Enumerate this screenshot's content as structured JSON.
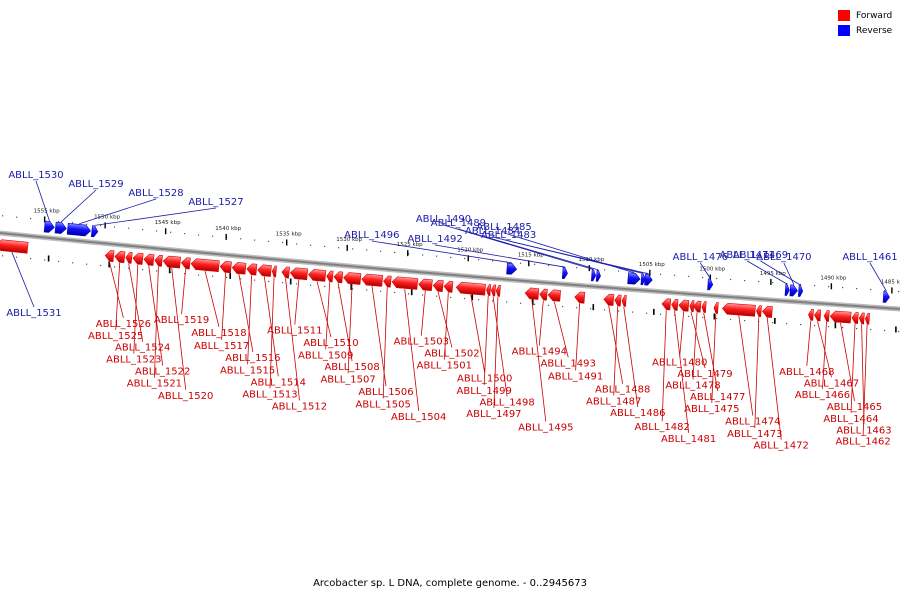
{
  "legend": {
    "forward": {
      "label": "Forward",
      "color": "#ff0000"
    },
    "reverse": {
      "label": "Reverse",
      "color": "#0000ff"
    }
  },
  "caption": "Arcobacter sp. L DNA, complete genome. - 0..2945673",
  "colors": {
    "forward_label": "#cc0000",
    "reverse_label": "#1a1aaa",
    "forward_fill": "#ff2020",
    "forward_dark": "#b00000",
    "reverse_fill": "#1010ff",
    "reverse_dark": "#0000a0",
    "backbone": "#808080",
    "tick": "#000000"
  },
  "scale": [
    {
      "label": "1555 kbp",
      "kbp": 1555
    },
    {
      "label": "1550 kbp",
      "kbp": 1550
    },
    {
      "label": "1545 kbp",
      "kbp": 1545
    },
    {
      "label": "1540 kbp",
      "kbp": 1540
    },
    {
      "label": "1535 kbp",
      "kbp": 1535
    },
    {
      "label": "1530 kbp",
      "kbp": 1530
    },
    {
      "label": "1525 kbp",
      "kbp": 1525
    },
    {
      "label": "1520 kbp",
      "kbp": 1520
    },
    {
      "label": "1515 kbp",
      "kbp": 1515
    },
    {
      "label": "1510 kbp",
      "kbp": 1510
    },
    {
      "label": "1505 kbp",
      "kbp": 1505
    },
    {
      "label": "1500 kbp",
      "kbp": 1500
    },
    {
      "label": "1495 kbp",
      "kbp": 1495
    },
    {
      "label": "1490 kbp",
      "kbp": 1490
    },
    {
      "label": "1485 kbp",
      "kbp": 1485
    }
  ],
  "genes": [
    {
      "name": "ABLL_1531",
      "strand": "forward",
      "start_kbp": 1559.0,
      "end_kbp": 1556.4
    },
    {
      "name": "ABLL_1530",
      "strand": "reverse",
      "start_kbp": 1555.0,
      "end_kbp": 1554.2
    },
    {
      "name": "ABLL_1529",
      "strand": "reverse",
      "start_kbp": 1554.1,
      "end_kbp": 1553.2
    },
    {
      "name": "ABLL_1528",
      "strand": "reverse",
      "start_kbp": 1553.1,
      "end_kbp": 1551.2
    },
    {
      "name": "ABLL_1527",
      "strand": "reverse",
      "start_kbp": 1551.1,
      "end_kbp": 1550.6
    },
    {
      "name": "ABLL_1526",
      "strand": "forward",
      "start_kbp": 1550.0,
      "end_kbp": 1549.3
    },
    {
      "name": "ABLL_1525",
      "strand": "forward",
      "start_kbp": 1549.2,
      "end_kbp": 1548.4
    },
    {
      "name": "ABLL_1524",
      "strand": "forward",
      "start_kbp": 1548.3,
      "end_kbp": 1547.8
    },
    {
      "name": "ABLL_1523",
      "strand": "forward",
      "start_kbp": 1547.7,
      "end_kbp": 1546.9
    },
    {
      "name": "ABLL_1522",
      "strand": "forward",
      "start_kbp": 1546.8,
      "end_kbp": 1546.0
    },
    {
      "name": "ABLL_1521",
      "strand": "forward",
      "start_kbp": 1545.9,
      "end_kbp": 1545.3
    },
    {
      "name": "ABLL_1520",
      "strand": "forward",
      "start_kbp": 1545.2,
      "end_kbp": 1543.8
    },
    {
      "name": "ABLL_1519",
      "strand": "forward",
      "start_kbp": 1543.7,
      "end_kbp": 1543.0
    },
    {
      "name": "ABLL_1518",
      "strand": "forward",
      "start_kbp": 1542.9,
      "end_kbp": 1540.6
    },
    {
      "name": "ABLL_1517",
      "strand": "forward",
      "start_kbp": 1540.5,
      "end_kbp": 1539.6
    },
    {
      "name": "ABLL_1516",
      "strand": "forward",
      "start_kbp": 1539.5,
      "end_kbp": 1538.4
    },
    {
      "name": "ABLL_1515",
      "strand": "forward",
      "start_kbp": 1538.3,
      "end_kbp": 1537.5
    },
    {
      "name": "ABLL_1514",
      "strand": "forward",
      "start_kbp": 1537.4,
      "end_kbp": 1536.3
    },
    {
      "name": "ABLL_1513",
      "strand": "forward",
      "start_kbp": 1536.2,
      "end_kbp": 1535.9
    },
    {
      "name": "ABLL_1512",
      "strand": "forward",
      "start_kbp": 1535.4,
      "end_kbp": 1534.8
    },
    {
      "name": "ABLL_1511",
      "strand": "forward",
      "start_kbp": 1534.7,
      "end_kbp": 1533.3
    },
    {
      "name": "ABLL_1510",
      "strand": "forward",
      "start_kbp": 1533.2,
      "end_kbp": 1531.8
    },
    {
      "name": "ABLL_1509",
      "strand": "forward",
      "start_kbp": 1531.7,
      "end_kbp": 1531.2
    },
    {
      "name": "ABLL_1508",
      "strand": "forward",
      "start_kbp": 1531.1,
      "end_kbp": 1530.4
    },
    {
      "name": "ABLL_1507",
      "strand": "forward",
      "start_kbp": 1530.3,
      "end_kbp": 1528.9
    },
    {
      "name": "ABLL_1506",
      "strand": "forward",
      "start_kbp": 1528.8,
      "end_kbp": 1527.1
    },
    {
      "name": "ABLL_1505",
      "strand": "forward",
      "start_kbp": 1527.0,
      "end_kbp": 1526.4
    },
    {
      "name": "ABLL_1504",
      "strand": "forward",
      "start_kbp": 1526.3,
      "end_kbp": 1524.2
    },
    {
      "name": "ABLL_1503",
      "strand": "forward",
      "start_kbp": 1524.1,
      "end_kbp": 1523.0
    },
    {
      "name": "ABLL_1502",
      "strand": "forward",
      "start_kbp": 1522.9,
      "end_kbp": 1522.1
    },
    {
      "name": "ABLL_1501",
      "strand": "forward",
      "start_kbp": 1522.0,
      "end_kbp": 1521.3
    },
    {
      "name": "ABLL_1500",
      "strand": "forward",
      "start_kbp": 1521.0,
      "end_kbp": 1518.6
    },
    {
      "name": "ABLL_1499",
      "strand": "forward",
      "start_kbp": 1518.5,
      "end_kbp": 1518.2
    },
    {
      "name": "ABLL_1498",
      "strand": "forward",
      "start_kbp": 1518.1,
      "end_kbp": 1517.8
    },
    {
      "name": "ABLL_1497",
      "strand": "forward",
      "start_kbp": 1517.7,
      "end_kbp": 1517.4
    },
    {
      "name": "ABLL_1496",
      "strand": "reverse",
      "start_kbp": 1516.8,
      "end_kbp": 1516.0
    },
    {
      "name": "ABLL_1495",
      "strand": "forward",
      "start_kbp": 1515.3,
      "end_kbp": 1514.2
    },
    {
      "name": "ABLL_1494",
      "strand": "forward",
      "start_kbp": 1514.1,
      "end_kbp": 1513.5
    },
    {
      "name": "ABLL_1493",
      "strand": "forward",
      "start_kbp": 1513.4,
      "end_kbp": 1512.4
    },
    {
      "name": "ABLL_1492",
      "strand": "reverse",
      "start_kbp": 1512.2,
      "end_kbp": 1511.8
    },
    {
      "name": "ABLL_1491",
      "strand": "forward",
      "start_kbp": 1511.2,
      "end_kbp": 1510.4
    },
    {
      "name": "ABLL_1490",
      "strand": "reverse",
      "start_kbp": 1509.8,
      "end_kbp": 1509.5
    },
    {
      "name": "ABLL_1489",
      "strand": "reverse",
      "start_kbp": 1509.4,
      "end_kbp": 1509.1
    },
    {
      "name": "ABLL_1488",
      "strand": "forward",
      "start_kbp": 1508.8,
      "end_kbp": 1508.0
    },
    {
      "name": "ABLL_1487",
      "strand": "forward",
      "start_kbp": 1507.9,
      "end_kbp": 1507.4
    },
    {
      "name": "ABLL_1486",
      "strand": "forward",
      "start_kbp": 1507.3,
      "end_kbp": 1507.0
    },
    {
      "name": "ABLL_1485",
      "strand": "reverse",
      "start_kbp": 1506.8,
      "end_kbp": 1505.8
    },
    {
      "name": "ABLL_1484",
      "strand": "reverse",
      "start_kbp": 1505.7,
      "end_kbp": 1505.5
    },
    {
      "name": "ABLL_1483",
      "strand": "reverse",
      "start_kbp": 1505.4,
      "end_kbp": 1504.8
    },
    {
      "name": "ABLL_1482",
      "strand": "forward",
      "start_kbp": 1504.0,
      "end_kbp": 1503.3
    },
    {
      "name": "ABLL_1481",
      "strand": "forward",
      "start_kbp": 1503.2,
      "end_kbp": 1502.7
    },
    {
      "name": "ABLL_1480",
      "strand": "forward",
      "start_kbp": 1502.6,
      "end_kbp": 1501.8
    },
    {
      "name": "ABLL_1479",
      "strand": "forward",
      "start_kbp": 1501.7,
      "end_kbp": 1501.5
    },
    {
      "name": "ABLL_1478",
      "strand": "forward",
      "start_kbp": 1501.4,
      "end_kbp": 1500.8
    },
    {
      "name": "ABLL_1477",
      "strand": "forward",
      "start_kbp": 1500.7,
      "end_kbp": 1500.4
    },
    {
      "name": "ABLL_1476",
      "strand": "reverse",
      "start_kbp": 1500.2,
      "end_kbp": 1499.8
    },
    {
      "name": "ABLL_1475",
      "strand": "forward",
      "start_kbp": 1499.7,
      "end_kbp": 1499.4
    },
    {
      "name": "ABLL_1474",
      "strand": "forward",
      "start_kbp": 1499.0,
      "end_kbp": 1496.3
    },
    {
      "name": "ABLL_1473",
      "strand": "forward",
      "start_kbp": 1496.2,
      "end_kbp": 1495.8
    },
    {
      "name": "ABLL_1472",
      "strand": "forward",
      "start_kbp": 1495.7,
      "end_kbp": 1494.9
    },
    {
      "name": "ABLL_1471",
      "strand": "reverse",
      "start_kbp": 1493.8,
      "end_kbp": 1493.5
    },
    {
      "name": "ABLL_1470",
      "strand": "reverse",
      "start_kbp": 1493.4,
      "end_kbp": 1492.8
    },
    {
      "name": "ABLL_1469",
      "strand": "reverse",
      "start_kbp": 1492.7,
      "end_kbp": 1492.4
    },
    {
      "name": "ABLL_1468",
      "strand": "forward",
      "start_kbp": 1491.9,
      "end_kbp": 1491.5
    },
    {
      "name": "ABLL_1467",
      "strand": "forward",
      "start_kbp": 1491.4,
      "end_kbp": 1490.9
    },
    {
      "name": "ABLL_1466",
      "strand": "forward",
      "start_kbp": 1490.6,
      "end_kbp": 1490.2
    },
    {
      "name": "ABLL_1465",
      "strand": "forward",
      "start_kbp": 1490.1,
      "end_kbp": 1488.4
    },
    {
      "name": "ABLL_1464",
      "strand": "forward",
      "start_kbp": 1488.3,
      "end_kbp": 1487.8
    },
    {
      "name": "ABLL_1463",
      "strand": "forward",
      "start_kbp": 1487.7,
      "end_kbp": 1487.3
    },
    {
      "name": "ABLL_1462",
      "strand": "forward",
      "start_kbp": 1487.2,
      "end_kbp": 1486.9
    },
    {
      "name": "ABLL_1461",
      "strand": "reverse",
      "start_kbp": 1485.7,
      "end_kbp": 1485.2
    }
  ]
}
